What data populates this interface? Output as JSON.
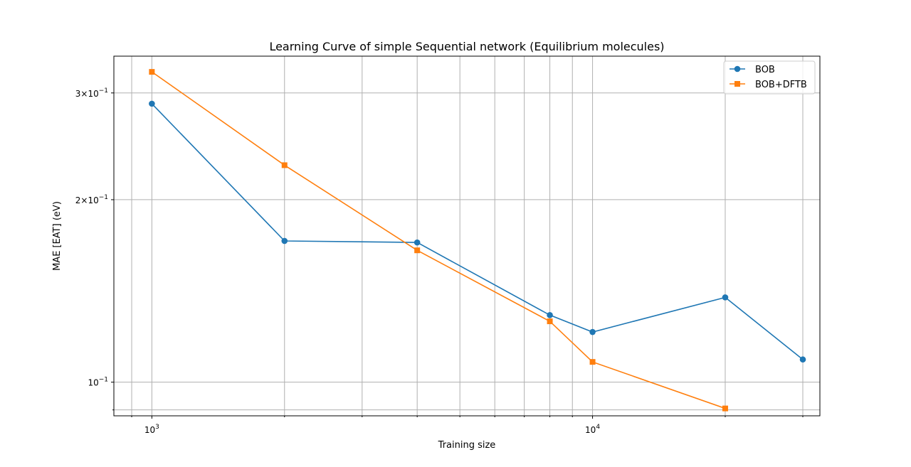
{
  "chart_data": {
    "type": "line",
    "title": "Learning Curve of simple Sequential network (Equilibrium molecules)",
    "xlabel": "Training size",
    "ylabel": "MAE [EAT] (eV)",
    "x_scale": "log",
    "y_scale": "log",
    "xlim": [
      820,
      32800
    ],
    "ylim": [
      0.088,
      0.345
    ],
    "grid": true,
    "legend_position": "top-right",
    "x_major_ticks": [
      {
        "value": 1000,
        "label": "10",
        "exp": "3"
      },
      {
        "value": 10000,
        "label": "10",
        "exp": "4"
      }
    ],
    "x_minor_ticks": [
      900,
      2000,
      3000,
      4000,
      5000,
      6000,
      7000,
      8000,
      9000,
      20000,
      30000
    ],
    "y_ticks": [
      {
        "value": 0.3,
        "label": "3×10",
        "exp": "−1"
      },
      {
        "value": 0.2,
        "label": "2×10",
        "exp": "−1"
      },
      {
        "value": 0.1,
        "label": "10",
        "exp": "−1"
      }
    ],
    "y_minor_ticks": [
      0.09
    ],
    "series": [
      {
        "name": "BOB",
        "color": "#1f77b4",
        "marker": "circle",
        "x": [
          1000,
          2000,
          4000,
          8000,
          10000,
          20000,
          30000
        ],
        "y": [
          0.288,
          0.171,
          0.17,
          0.129,
          0.121,
          0.138,
          0.109
        ]
      },
      {
        "name": "BOB+DFTB",
        "color": "#ff7f0e",
        "marker": "square",
        "x": [
          1000,
          2000,
          4000,
          8000,
          10000,
          20000
        ],
        "y": [
          0.325,
          0.228,
          0.165,
          0.126,
          0.108,
          0.0905
        ]
      }
    ]
  }
}
